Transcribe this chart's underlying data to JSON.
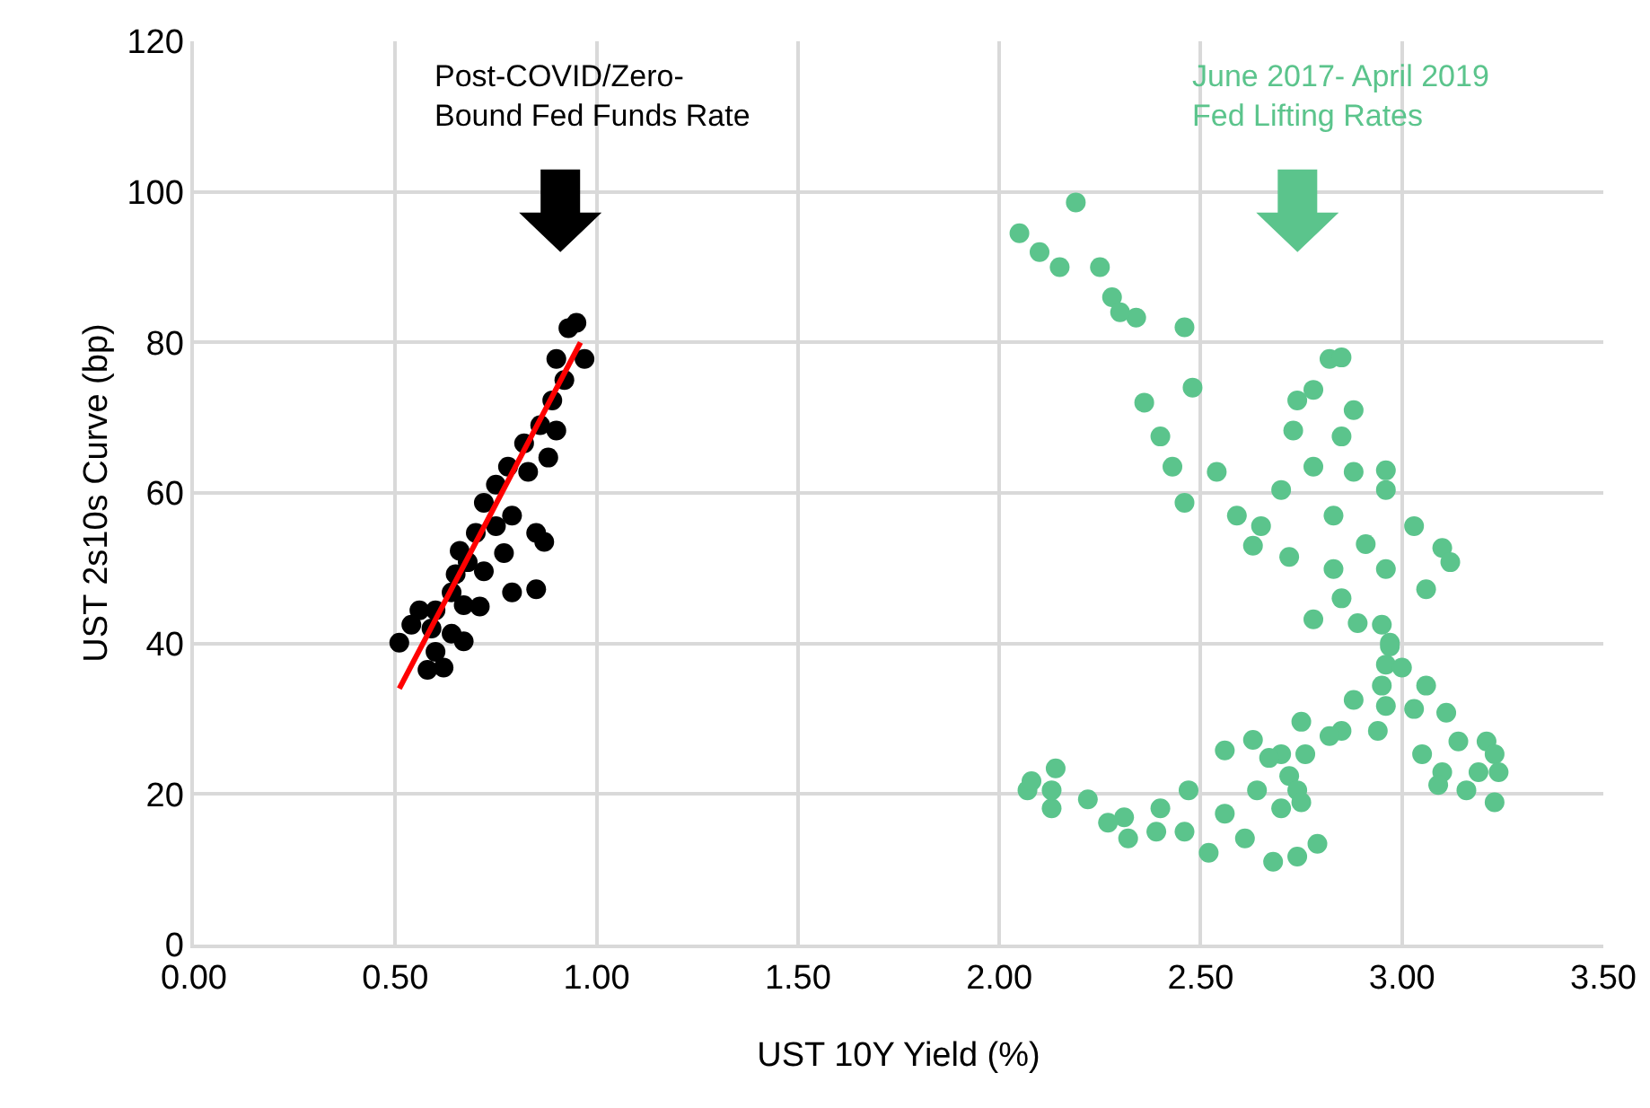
{
  "chart_data": {
    "type": "scatter",
    "xlabel": "UST 10Y Yield (%)",
    "ylabel": "UST 2s10s Curve (bp)",
    "xlim": [
      0,
      3.5
    ],
    "xticks": [
      {
        "value": 0,
        "label": "0.00"
      },
      {
        "value": 0.5,
        "label": "0.50"
      },
      {
        "value": 1,
        "label": "1.00"
      },
      {
        "value": 1.5,
        "label": "1.50"
      },
      {
        "value": 2,
        "label": "2.00"
      },
      {
        "value": 2.5,
        "label": "2.50"
      },
      {
        "value": 3,
        "label": "3.00"
      },
      {
        "value": 3.5,
        "label": "3.50"
      }
    ],
    "ylim": [
      0,
      120
    ],
    "yticks": [
      0,
      20,
      40,
      60,
      80,
      100,
      120
    ],
    "grid": true,
    "marker": "circle",
    "annotations": [
      "Post-COVID/Zero-\nBound Fed Funds Rate",
      "June 2017- April 2019\nFed Lifting Rates"
    ],
    "series": [
      {
        "color": "#000000",
        "x": [
          0.95,
          0.93,
          0.97,
          0.9,
          0.92,
          0.89,
          0.9,
          0.86,
          0.82,
          0.88,
          0.83,
          0.78,
          0.75,
          0.72,
          0.75,
          0.7,
          0.85,
          0.87,
          0.77,
          0.66,
          0.72,
          0.65,
          0.64,
          0.79,
          0.85,
          0.71,
          0.67,
          0.6,
          0.56,
          0.54,
          0.51,
          0.59,
          0.67,
          0.6,
          0.58,
          0.62,
          0.64,
          0.68,
          0.79
        ],
        "values": [
          82.6,
          81.9,
          77.8,
          77.8,
          75,
          72.3,
          68.3,
          69,
          66.6,
          64.7,
          62.8,
          63.5,
          61.1,
          58.7,
          55.6,
          54.7,
          54.7,
          53.5,
          52,
          52.3,
          49.6,
          49.2,
          46.8,
          46.8,
          47.2,
          44.9,
          45.1,
          44.4,
          44.4,
          42.5,
          40.1,
          42,
          40.3,
          38.9,
          36.5,
          36.8,
          41.3,
          50.8,
          57
        ]
      },
      {
        "color": "#5bc48c",
        "x": [
          2.05,
          2.19,
          2.34,
          2.46,
          2.36,
          2.4,
          2.48,
          2.43,
          2.46,
          2.54,
          2.59,
          2.65,
          2.7,
          2.63,
          2.72,
          2.82,
          2.85,
          2.74,
          2.78,
          2.73,
          2.88,
          2.85,
          2.78,
          2.88,
          2.96,
          2.83,
          2.96,
          3.03,
          3.1,
          3.12,
          3.06,
          2.83,
          2.91,
          2.96,
          2.85,
          2.78,
          2.89,
          2.95,
          2.97,
          2.97,
          2.96,
          3.0,
          3.06,
          2.95,
          2.88,
          2.96,
          3.03,
          3.11,
          2.85,
          2.94,
          2.75,
          2.82,
          2.76,
          2.7,
          2.63,
          2.56,
          2.67,
          3.05,
          3.14,
          3.21,
          3.23,
          3.1,
          3.19,
          3.24,
          3.09,
          3.16,
          3.23,
          2.72,
          2.64,
          2.74,
          2.7,
          2.75,
          2.79,
          2.68,
          2.74,
          2.61,
          2.52,
          2.56,
          2.47,
          2.4,
          2.39,
          2.46,
          2.31,
          2.32,
          2.27,
          2.22,
          2.13,
          2.07,
          2.08,
          2.14,
          2.13,
          2.1,
          2.15,
          2.25,
          2.28,
          2.3
        ],
        "values": [
          94.5,
          98.6,
          83.3,
          82,
          72,
          67.5,
          74,
          63.5,
          58.7,
          62.8,
          57,
          55.6,
          60.4,
          53,
          51.5,
          77.8,
          78,
          72.3,
          73.7,
          68.3,
          71,
          67.5,
          63.5,
          62.8,
          63,
          57,
          60.4,
          55.6,
          52.7,
          50.8,
          47.2,
          49.9,
          53.2,
          49.9,
          46,
          43.2,
          42.7,
          42.5,
          40.1,
          39.6,
          37.2,
          36.8,
          34.4,
          34.4,
          32.5,
          31.7,
          31.3,
          30.8,
          28.4,
          28.4,
          29.6,
          27.7,
          25.3,
          25.3,
          27.2,
          25.8,
          24.8,
          25.3,
          27,
          27,
          25.3,
          22.9,
          22.9,
          22.9,
          21.2,
          20.5,
          18.9,
          22.4,
          20.5,
          20.5,
          18.1,
          18.9,
          13.4,
          11,
          11.7,
          14.1,
          12.2,
          17.4,
          20.5,
          18.1,
          15,
          15,
          16.9,
          14.1,
          16.2,
          19.3,
          18.1,
          20.5,
          21.7,
          23.4,
          20.5,
          92,
          90,
          90,
          86,
          84
        ]
      },
      {
        "type": "line",
        "color": "#ff0000",
        "x": [
          0.51,
          0.96
        ],
        "values": [
          34,
          80
        ],
        "marker": "none"
      }
    ]
  }
}
